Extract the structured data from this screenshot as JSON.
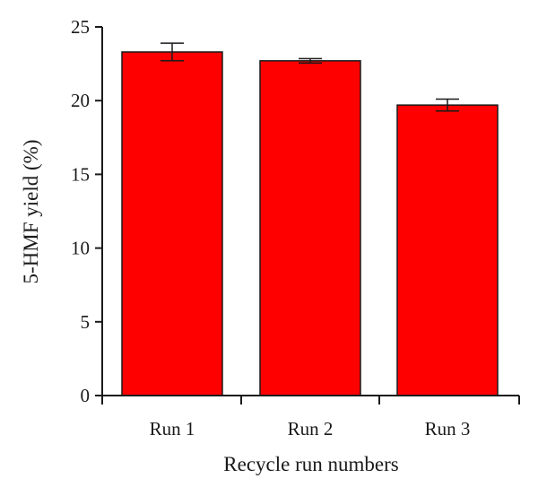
{
  "chart_data": {
    "type": "bar",
    "categories": [
      "Run 1",
      "Run 2",
      "Run 3"
    ],
    "values": [
      23.3,
      22.7,
      19.7
    ],
    "errors": [
      0.6,
      0.15,
      0.4
    ],
    "xlabel": "Recycle run numbers",
    "ylabel": "5-HMF yield (%)",
    "ylim": [
      0,
      25
    ],
    "yticks": [
      0,
      5,
      10,
      15,
      20,
      25
    ],
    "bar_color": "#ff0000",
    "bar_edge_color": "#1a1a1a",
    "grid": false,
    "legend": "none"
  }
}
